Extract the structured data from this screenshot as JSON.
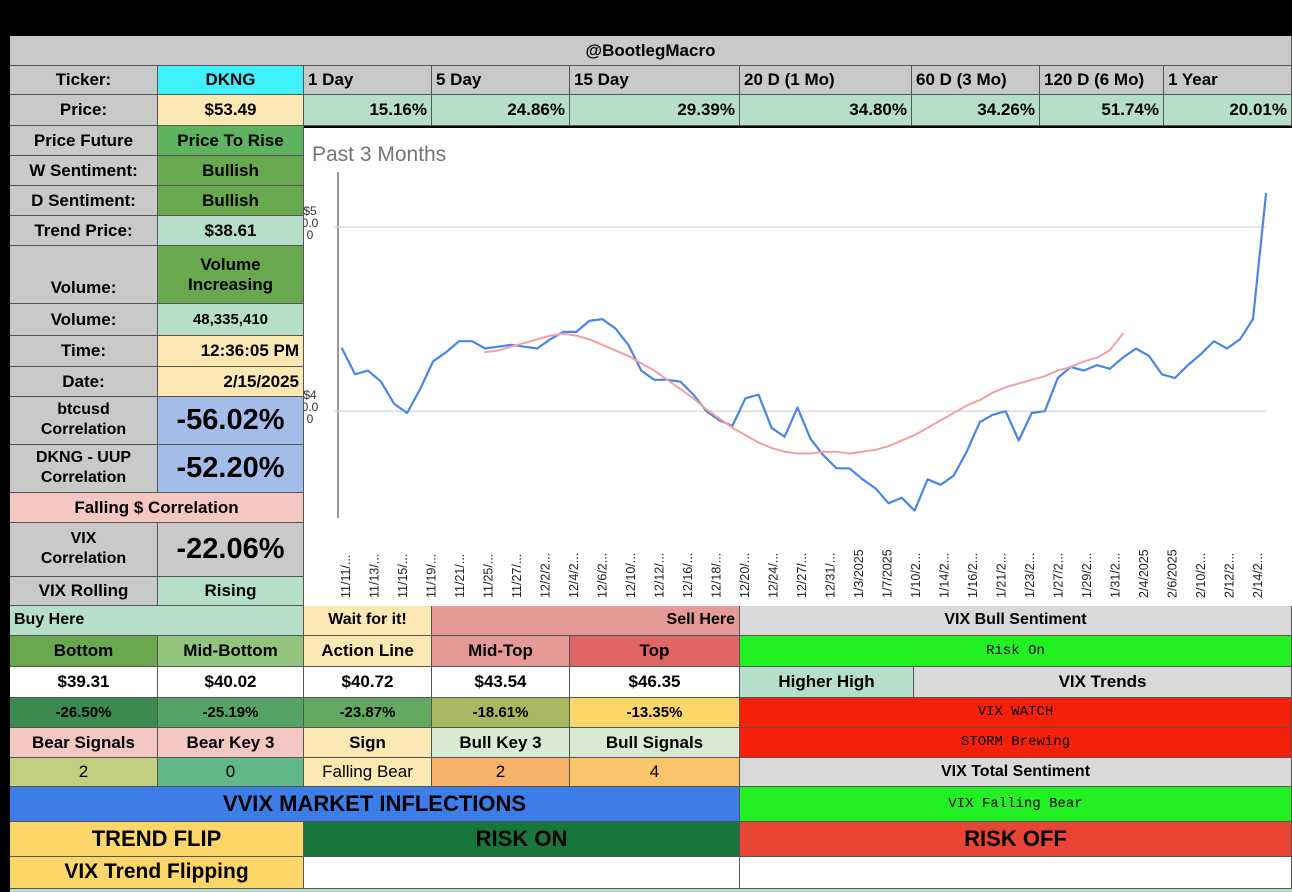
{
  "header": {
    "title": "@BootlegMacro"
  },
  "ticker": {
    "label": "Ticker:",
    "value": "DKNG"
  },
  "price": {
    "label": "Price:",
    "value": "$53.49"
  },
  "periods": [
    {
      "label": "1 Day",
      "change": "15.16%"
    },
    {
      "label": "5 Day",
      "change": "24.86%"
    },
    {
      "label": "15 Day",
      "change": "29.39%"
    },
    {
      "label": "20 D (1 Mo)",
      "change": "34.80%"
    },
    {
      "label": "60 D (3 Mo)",
      "change": "34.26%"
    },
    {
      "label": "120 D (6 Mo)",
      "change": "51.74%"
    },
    {
      "label": "1 Year",
      "change": "20.01%"
    }
  ],
  "left_panel": {
    "price_future": {
      "label": "Price Future",
      "value": "Price To Rise"
    },
    "w_sentiment": {
      "label": "W Sentiment:",
      "value": "Bullish"
    },
    "d_sentiment": {
      "label": "D Sentiment:",
      "value": "Bullish"
    },
    "trend_price": {
      "label": "Trend Price:",
      "value": "$38.61"
    },
    "volume_trend": {
      "label": "Volume:",
      "value_line1": "Volume",
      "value_line2": "Increasing"
    },
    "volume": {
      "label": "Volume:",
      "value": "48,335,410"
    },
    "time": {
      "label": "Time:",
      "value": "12:36:05 PM"
    },
    "date": {
      "label": "Date:",
      "value": "2/15/2025"
    },
    "btc_corr": {
      "label_line1": "btcusd",
      "label_line2": "Correlation",
      "value": "-56.02%"
    },
    "uup_corr": {
      "label_line1": "DKNG - UUP",
      "label_line2": "Correlation",
      "value": "-52.20%"
    },
    "falling_corr": "Falling $ Correlation",
    "vix_corr": {
      "label_line1": "VIX",
      "label_line2": "Correlation",
      "value": "-22.06%"
    },
    "vix_rolling": {
      "label": "VIX Rolling",
      "value": "Rising"
    }
  },
  "chart_data": {
    "type": "line",
    "title": "Past 3 Months",
    "ytick_labels": [
      {
        "value": 50,
        "lines": [
          "$5",
          "0.0",
          "0"
        ]
      },
      {
        "value": 40,
        "lines": [
          "$4",
          "0.0",
          "0"
        ]
      }
    ],
    "ylim": [
      34.2,
      53.2
    ],
    "x_tick_labels": [
      "11/11/...",
      "11/13/...",
      "11/15/...",
      "11/19/...",
      "11/21/...",
      "11/25/...",
      "11/27/...",
      "12/2/2...",
      "12/4/2...",
      "12/6/2...",
      "12/10/...",
      "12/12/...",
      "12/16/...",
      "12/18/...",
      "12/20/...",
      "12/24/...",
      "12/27/...",
      "12/31/...",
      "1/3/2025",
      "1/7/2025",
      "1/10/2...",
      "1/14/2...",
      "1/16/2...",
      "1/21/2...",
      "1/23/2...",
      "1/27/2...",
      "1/29/2...",
      "1/31/2...",
      "2/4/2025",
      "2/6/2025",
      "2/10/2...",
      "2/12/2...",
      "2/14/2..."
    ],
    "series": [
      {
        "color": "#4a86e8",
        "values": [
          43.4,
          42.0,
          42.2,
          41.6,
          40.4,
          39.9,
          41.2,
          42.7,
          43.2,
          43.8,
          43.8,
          43.4,
          43.5,
          43.6,
          43.5,
          43.4,
          43.9,
          44.3,
          44.3,
          44.9,
          45.0,
          44.5,
          43.6,
          42.2,
          41.7,
          41.7,
          41.6,
          40.9,
          40.0,
          39.5,
          39.2,
          40.7,
          40.9,
          39.1,
          38.6,
          40.2,
          38.5,
          37.6,
          36.9,
          36.9,
          36.3,
          35.8,
          35.0,
          35.3,
          34.6,
          36.3,
          36.0,
          36.5,
          37.8,
          39.4,
          39.8,
          40.0,
          38.4,
          39.9,
          40.0,
          41.8,
          42.4,
          42.2,
          42.5,
          42.3,
          42.9,
          43.4,
          43.0,
          42.0,
          41.8,
          42.5,
          43.1,
          43.8,
          43.4,
          43.9,
          45.0,
          51.8
        ]
      },
      {
        "color": "#f4a0a0",
        "offset": 11,
        "values": [
          43.2,
          43.3,
          43.5,
          43.7,
          43.9,
          44.1,
          44.2,
          44.1,
          43.9,
          43.6,
          43.3,
          43.0,
          42.6,
          42.2,
          41.7,
          41.2,
          40.7,
          40.1,
          39.6,
          39.1,
          38.7,
          38.3,
          38.0,
          37.8,
          37.7,
          37.7,
          37.8,
          37.8,
          37.7,
          37.8,
          37.9,
          38.1,
          38.4,
          38.7,
          39.1,
          39.5,
          39.9,
          40.3,
          40.6,
          41.0,
          41.3,
          41.5,
          41.7,
          41.9,
          42.2,
          42.4,
          42.7,
          42.9,
          43.3,
          44.2
        ]
      }
    ]
  },
  "levels": {
    "buy_here": "Buy Here",
    "wait": "Wait for it!",
    "sell_here": "Sell Here",
    "vix_bull_sentiment": "VIX Bull Sentiment",
    "headers": [
      "Bottom",
      "Mid-Bottom",
      "Action Line",
      "Mid-Top",
      "Top"
    ],
    "prices": [
      "$39.31",
      "$40.02",
      "$40.72",
      "$43.54",
      "$46.35"
    ],
    "pcts": [
      "-26.50%",
      "-25.19%",
      "-23.87%",
      "-18.61%",
      "-13.35%"
    ],
    "risk_on": "Risk On",
    "higher_high": "Higher High",
    "vix_trends": "VIX Trends",
    "vix_watch": "VIX WATCH",
    "storm": "STORM Brewing",
    "vix_total_sentiment": "VIX Total Sentiment",
    "vix_falling_bear": "VIX Falling Bear"
  },
  "signals": {
    "headers": [
      "Bear Signals",
      "Bear Key 3",
      "Sign",
      "Bull Key 3",
      "Bull Signals"
    ],
    "values": [
      "2",
      "0",
      "Falling Bear",
      "2",
      "4"
    ]
  },
  "inflections": {
    "title": "VVIX MARKET INFLECTIONS",
    "trend_flip": "TREND FLIP",
    "risk_on": "RISK ON",
    "risk_off": "RISK OFF",
    "vix_trend_flipping": "VIX Trend Flipping"
  },
  "colors": {
    "ticker_bg": "#3ff0ff",
    "price_bg": "#fce8b2",
    "mint": "#b6dfc9",
    "green": "#6aa84f",
    "pink": "#f4c7c3",
    "blue": "#a4bce8",
    "lime": "#22f022",
    "red": "#f4200a",
    "vvix_blue": "#3c7de8",
    "dark_green": "#18763c",
    "orange_red": "#e84535",
    "yellow": "#fdd66a"
  }
}
